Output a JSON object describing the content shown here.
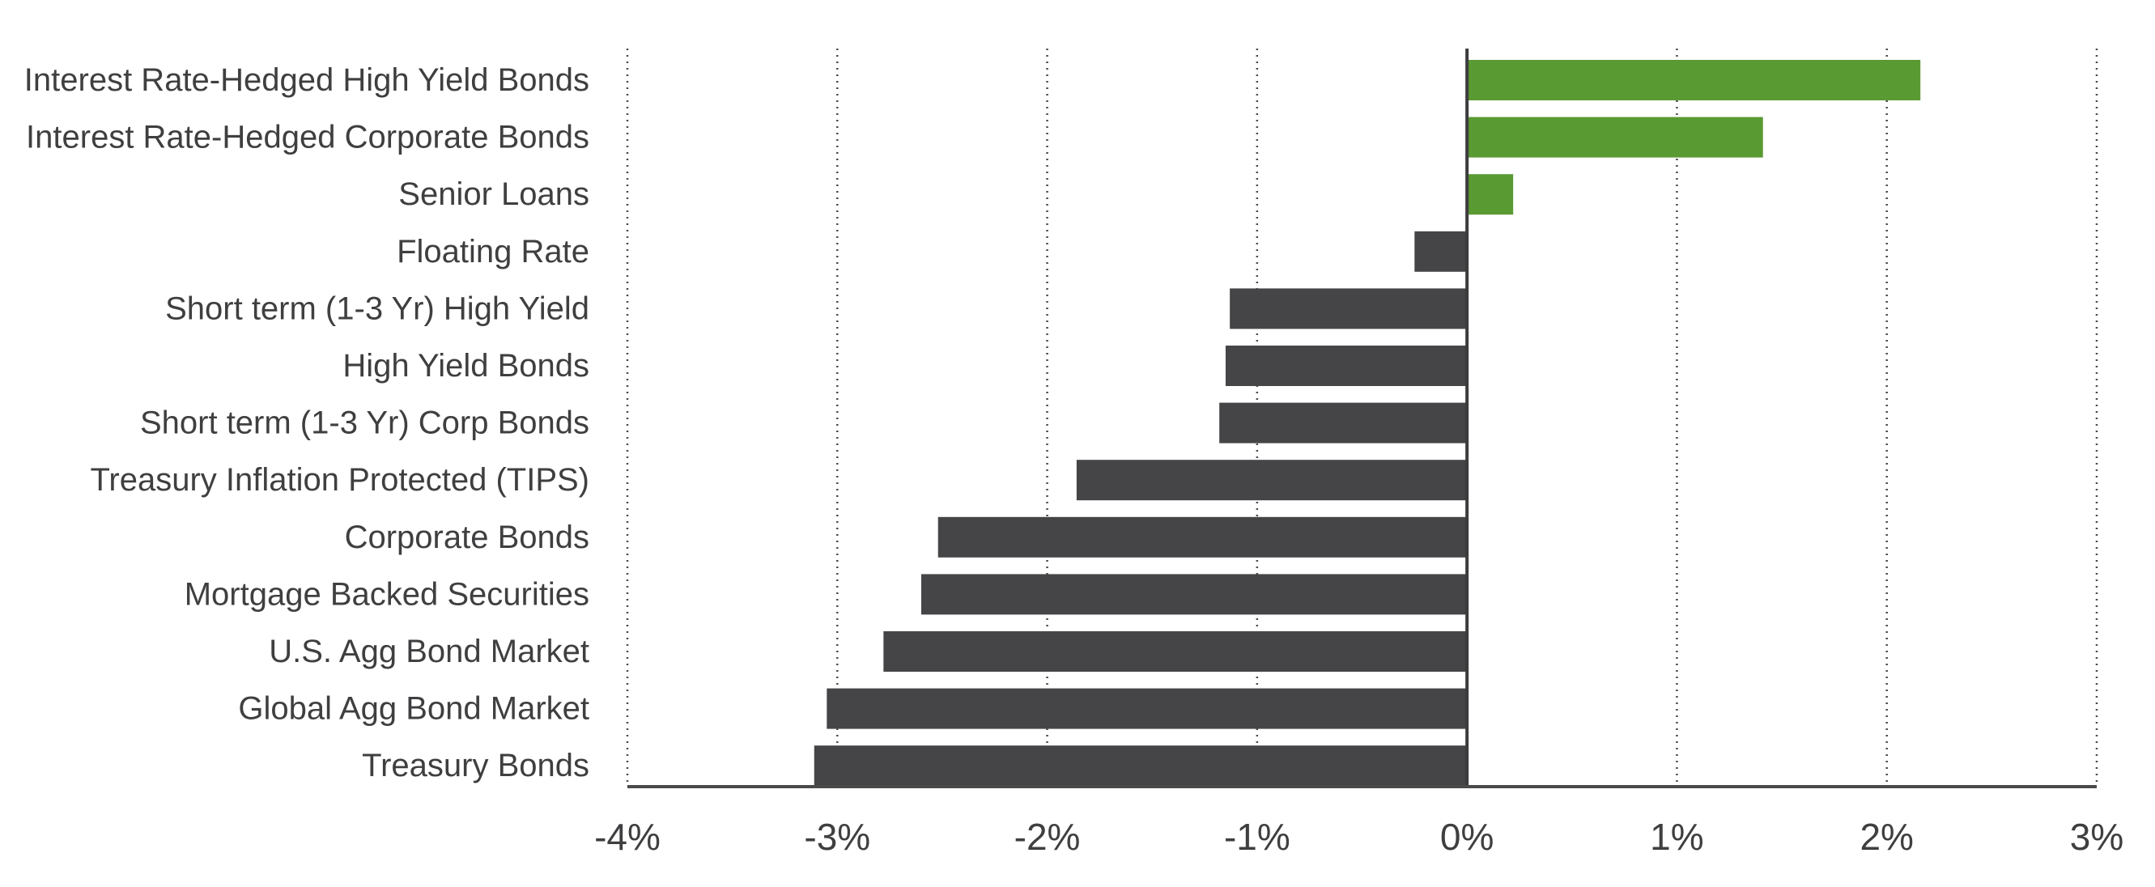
{
  "chart_data": {
    "type": "bar",
    "orientation": "horizontal",
    "categories": [
      "Interest Rate-Hedged High Yield Bonds",
      "Interest Rate-Hedged Corporate Bonds",
      "Senior Loans",
      "Floating Rate",
      "Short term (1-3 Yr) High Yield",
      "High Yield Bonds",
      "Short term (1-3 Yr) Corp Bonds",
      "Treasury Inflation Protected (TIPS)",
      "Corporate Bonds",
      "Mortgage Backed Securities",
      "U.S. Agg Bond Market",
      "Global Agg Bond Market",
      "Treasury Bonds"
    ],
    "values": [
      2.16,
      1.41,
      0.22,
      -0.25,
      -1.13,
      -1.15,
      -1.18,
      -1.86,
      -2.52,
      -2.6,
      -2.78,
      -3.05,
      -3.11
    ],
    "xlim": [
      -4,
      3
    ],
    "xticks": [
      -4,
      -3,
      -2,
      -1,
      0,
      1,
      2,
      3
    ],
    "xtick_labels": [
      "-4%",
      "-3%",
      "-2%",
      "-1%",
      "0%",
      "1%",
      "2%",
      "3%"
    ],
    "grid": "vertical-dotted",
    "title": "",
    "xlabel": "",
    "ylabel": "",
    "colors": {
      "positive": "#5a9a33",
      "negative": "#454547"
    }
  }
}
